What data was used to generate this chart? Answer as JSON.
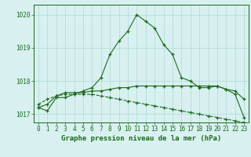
{
  "title": "Graphe pression niveau de la mer (hPa)",
  "x_hours": [
    0,
    1,
    2,
    3,
    4,
    5,
    6,
    7,
    8,
    9,
    10,
    11,
    12,
    13,
    14,
    15,
    16,
    17,
    18,
    19,
    20,
    21,
    22,
    23
  ],
  "line1": [
    1017.2,
    1017.1,
    1017.5,
    1017.5,
    1017.6,
    1017.7,
    1017.8,
    1018.1,
    1018.8,
    1019.2,
    1019.5,
    1020.0,
    1019.8,
    1019.6,
    1019.1,
    1018.8,
    1018.1,
    1018.0,
    1017.8,
    1017.8,
    1017.85,
    1017.75,
    1017.6,
    1016.9
  ],
  "line2": [
    1017.2,
    1017.3,
    1017.55,
    1017.65,
    1017.65,
    1017.65,
    1017.7,
    1017.7,
    1017.75,
    1017.8,
    1017.8,
    1017.85,
    1017.85,
    1017.85,
    1017.85,
    1017.85,
    1017.85,
    1017.85,
    1017.85,
    1017.85,
    1017.85,
    1017.75,
    1017.7,
    1017.45
  ],
  "line3": [
    1017.3,
    1017.45,
    1017.55,
    1017.6,
    1017.6,
    1017.6,
    1017.6,
    1017.55,
    1017.5,
    1017.45,
    1017.4,
    1017.35,
    1017.3,
    1017.25,
    1017.2,
    1017.15,
    1017.1,
    1017.05,
    1017.0,
    1016.95,
    1016.9,
    1016.85,
    1016.8,
    1016.75
  ],
  "line_color": "#1a6b1a",
  "bg_color": "#d8f0f0",
  "grid_color": "#afd8d8",
  "ylim": [
    1016.75,
    1020.3
  ],
  "yticks": [
    1017,
    1018,
    1019,
    1020
  ],
  "title_fontsize": 6.5,
  "tick_fontsize": 5.5
}
